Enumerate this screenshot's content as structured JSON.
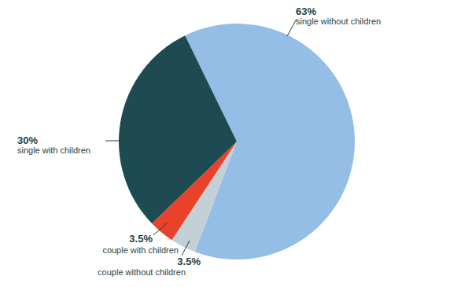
{
  "chart_data": {
    "type": "pie",
    "categories": [
      "single without children",
      "couple without children",
      "couple with children",
      "single with children"
    ],
    "values": [
      63,
      3.5,
      3.5,
      30
    ],
    "value_labels": [
      "63%",
      "3.5%",
      "3.5%",
      "30%"
    ],
    "colors": [
      "#94bee6",
      "#c3d0d6",
      "#e8432a",
      "#1e4a51"
    ],
    "data_labels": true
  }
}
